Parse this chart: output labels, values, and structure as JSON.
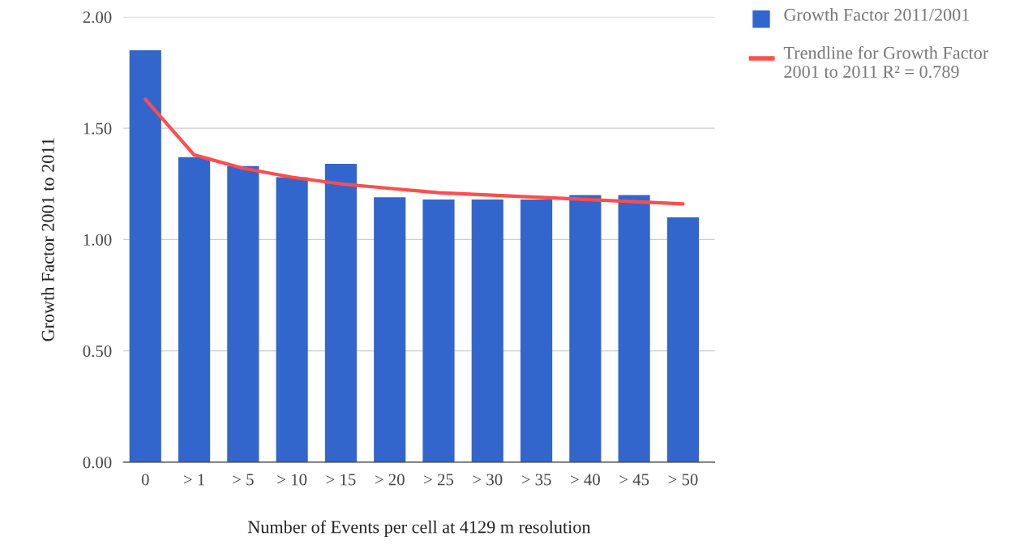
{
  "chart_data": {
    "type": "bar",
    "xlabel": "Number of Events per cell at 4129 m resolution",
    "ylabel": "Growth Factor 2001 to 2011",
    "categories": [
      "0",
      "> 1",
      "> 5",
      "> 10",
      "> 15",
      "> 20",
      "> 25",
      "> 30",
      "> 35",
      "> 40",
      "> 45",
      "> 50"
    ],
    "series": [
      {
        "name": "Growth Factor 2011/2001",
        "color": "#3366cc",
        "values": [
          1.85,
          1.37,
          1.33,
          1.28,
          1.34,
          1.19,
          1.18,
          1.18,
          1.18,
          1.2,
          1.2,
          1.1
        ]
      },
      {
        "name": "Trendline for Growth Factor 2001 to 2011 R² = 0.789",
        "type": "line",
        "color": "#ff4d4d",
        "values": [
          1.63,
          1.38,
          1.32,
          1.28,
          1.25,
          1.23,
          1.21,
          1.2,
          1.19,
          1.18,
          1.17,
          1.16
        ]
      }
    ],
    "ylim": [
      0,
      2
    ],
    "yticks": [
      {
        "value": 0,
        "label": "0.00"
      },
      {
        "value": 0.5,
        "label": "0.50"
      },
      {
        "value": 1,
        "label": "1.00"
      },
      {
        "value": 1.5,
        "label": "1.50"
      },
      {
        "value": 2,
        "label": "2.00"
      }
    ],
    "grid": "y",
    "legend": "top right"
  }
}
